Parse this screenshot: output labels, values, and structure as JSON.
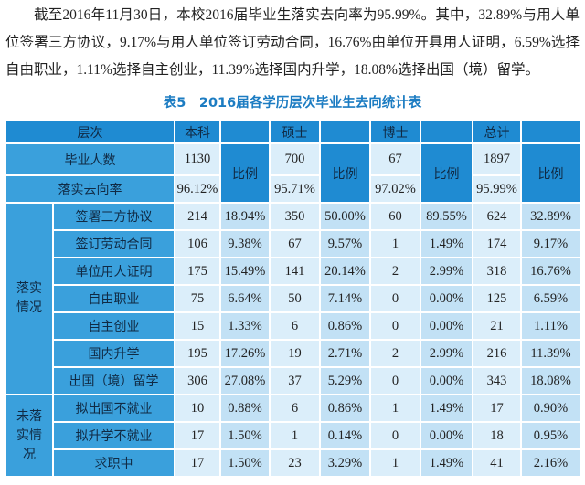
{
  "paragraph": "截至2016年11月30日，本校2016届毕业生落实去向率为95.99%。其中，32.89%与用人单位签署三方协议，9.17%与用人单位签订劳动合同，16.76%由单位开具用人证明，6.59%选择自由职业，1.11%选择自主创业，11.39%选择国内升学，18.08%选择出国（境）留学。",
  "table": {
    "caption": "表5　2016届各学历层次毕业生去向统计表",
    "header": [
      "层次",
      "本科",
      "硕士",
      "博士",
      "总计"
    ],
    "ratio_labels": [
      "比例",
      "比例",
      "比例",
      "比例"
    ],
    "graduates": {
      "label": "毕业人数",
      "values": [
        "1130",
        "700",
        "67",
        "1897"
      ]
    },
    "rate": {
      "label": "落实去向率",
      "values": [
        "96.12%",
        "95.71%",
        "97.02%",
        "95.99%"
      ]
    },
    "groups": [
      {
        "label": "落实情况",
        "rows": [
          {
            "label": "签署三方协议",
            "cells": [
              "214",
              "18.94%",
              "350",
              "50.00%",
              "60",
              "89.55%",
              "624",
              "32.89%"
            ]
          },
          {
            "label": "签订劳动合同",
            "cells": [
              "106",
              "9.38%",
              "67",
              "9.57%",
              "1",
              "1.49%",
              "174",
              "9.17%"
            ]
          },
          {
            "label": "单位用人证明",
            "cells": [
              "175",
              "15.49%",
              "141",
              "20.14%",
              "2",
              "2.99%",
              "318",
              "16.76%"
            ]
          },
          {
            "label": "自由职业",
            "cells": [
              "75",
              "6.64%",
              "50",
              "7.14%",
              "0",
              "0.00%",
              "125",
              "6.59%"
            ]
          },
          {
            "label": "自主创业",
            "cells": [
              "15",
              "1.33%",
              "6",
              "0.86%",
              "0",
              "0.00%",
              "21",
              "1.11%"
            ]
          },
          {
            "label": "国内升学",
            "cells": [
              "195",
              "17.26%",
              "19",
              "2.71%",
              "2",
              "2.99%",
              "216",
              "11.39%"
            ]
          },
          {
            "label": "出国（境）留学",
            "cells": [
              "306",
              "27.08%",
              "37",
              "5.29%",
              "0",
              "0.00%",
              "343",
              "18.08%"
            ]
          }
        ]
      },
      {
        "label": "未落实情况",
        "rows": [
          {
            "label": "拟出国不就业",
            "cells": [
              "10",
              "0.88%",
              "6",
              "0.86%",
              "1",
              "1.49%",
              "17",
              "0.90%"
            ]
          },
          {
            "label": "拟升学不就业",
            "cells": [
              "17",
              "1.50%",
              "1",
              "0.14%",
              "0",
              "0.00%",
              "18",
              "0.95%"
            ]
          },
          {
            "label": "求职中",
            "cells": [
              "17",
              "1.50%",
              "23",
              "3.29%",
              "1",
              "1.49%",
              "41",
              "2.16%"
            ]
          }
        ]
      }
    ]
  }
}
